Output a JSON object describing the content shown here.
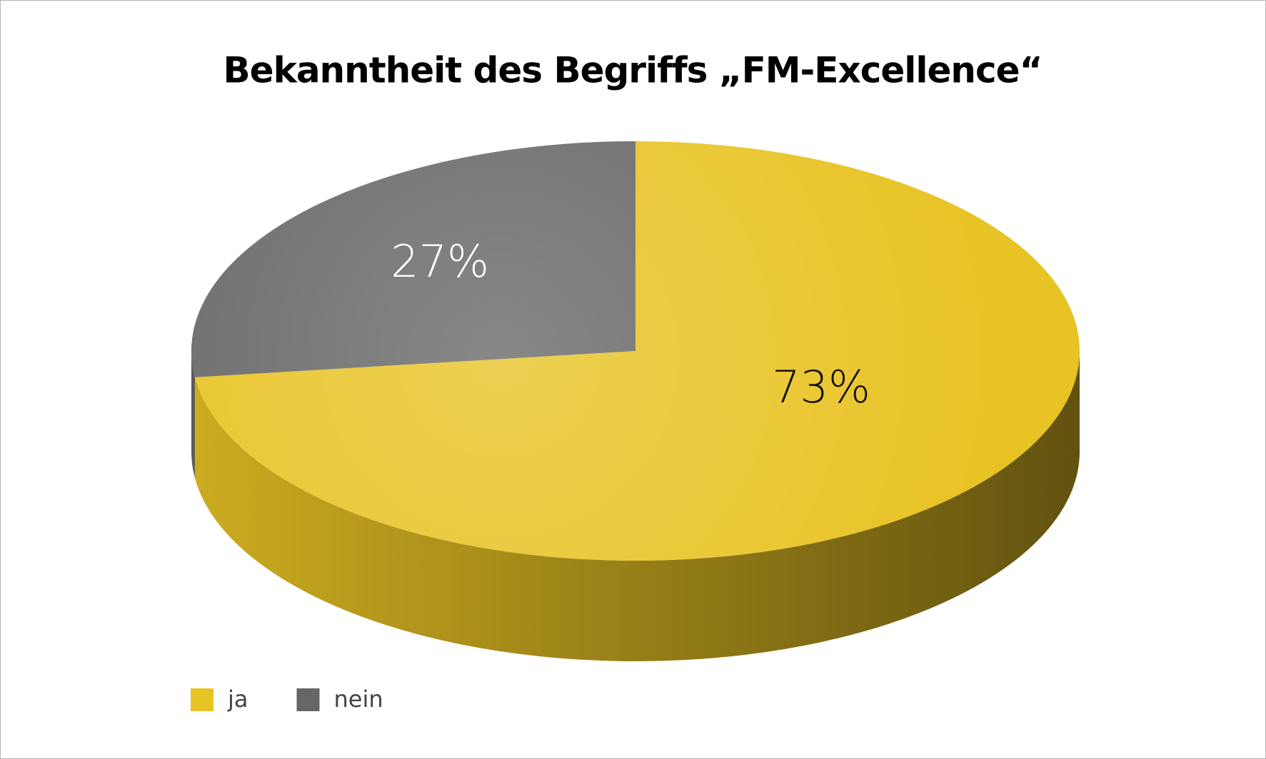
{
  "chart_data": {
    "type": "pie",
    "title": "Bekanntheit des Begriffs „FM-Excellence“",
    "categories": [
      "ja",
      "nein"
    ],
    "values": [
      73,
      27
    ],
    "value_labels": [
      "73%",
      "27%"
    ],
    "colors": [
      "#e8c324",
      "#666666"
    ],
    "legend": "bottom-left"
  }
}
